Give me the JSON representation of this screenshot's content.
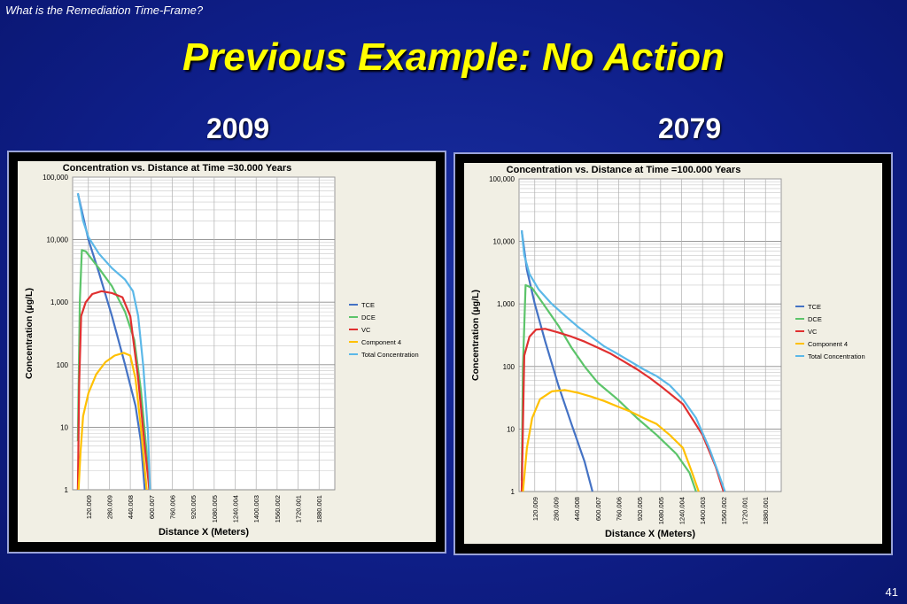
{
  "slide": {
    "header_note": "What is the Remediation Time-Frame?",
    "title": "Previous Example: No Action",
    "year_left": "2009",
    "year_right": "2079",
    "page_number": "41"
  },
  "chart_data": [
    {
      "type": "line",
      "title": "Concentration  vs. Distance at Time =30.000 Years",
      "xlabel": "Distance X (Meters)",
      "ylabel": "Concentration (µg/L)",
      "yscale": "log",
      "ylim": [
        1,
        100000
      ],
      "xlim": [
        0,
        2000
      ],
      "y_tick_labels": [
        "1",
        "10",
        "100",
        "1,000",
        "10,000",
        "100,000"
      ],
      "x_tick_labels": [
        "120.009",
        "280.009",
        "440.008",
        "600.007",
        "760.006",
        "920.005",
        "1080.005",
        "1240.004",
        "1400.003",
        "1560.002",
        "1720.001",
        "1880.001"
      ],
      "legend_position": "right",
      "series": [
        {
          "name": "TCE",
          "color": "#4472c4",
          "x": [
            40,
            120,
            200,
            300,
            400,
            480,
            520,
            550
          ],
          "y": [
            55000,
            10000,
            3000,
            600,
            100,
            22,
            6,
            1
          ]
        },
        {
          "name": "DCE",
          "color": "#5cc46a",
          "x": [
            40,
            55,
            70,
            100,
            200,
            300,
            400,
            470,
            520,
            560,
            585
          ],
          "y": [
            6,
            1000,
            6800,
            6500,
            3500,
            1800,
            700,
            250,
            40,
            5,
            1
          ]
        },
        {
          "name": "VC",
          "color": "#e03030",
          "x": [
            40,
            50,
            65,
            100,
            150,
            220,
            300,
            380,
            440,
            500,
            550,
            585
          ],
          "y": [
            1,
            50,
            600,
            1000,
            1350,
            1500,
            1400,
            1200,
            600,
            60,
            5,
            1
          ]
        },
        {
          "name": "Component 4",
          "color": "#ffc000",
          "x": [
            45,
            60,
            80,
            120,
            180,
            250,
            320,
            390,
            440,
            480,
            520,
            565
          ],
          "y": [
            1,
            4,
            15,
            35,
            70,
            110,
            140,
            155,
            140,
            60,
            10,
            1
          ]
        },
        {
          "name": "Total Concentration",
          "color": "#5bb8e8",
          "x": [
            40,
            80,
            120,
            200,
            300,
            400,
            460,
            500,
            540,
            575,
            590
          ],
          "y": [
            55000,
            20000,
            11000,
            6000,
            3500,
            2300,
            1500,
            600,
            90,
            8,
            1
          ]
        }
      ]
    },
    {
      "type": "line",
      "title": "Concentration  vs. Distance at Time =100.000 Years",
      "xlabel": "Distance X (Meters)",
      "ylabel": "Concentration (µg/L)",
      "yscale": "log",
      "ylim": [
        1,
        100000
      ],
      "xlim": [
        0,
        2000
      ],
      "y_tick_labels": [
        "1",
        "10",
        "100",
        "1,000",
        "10,000",
        "100,000"
      ],
      "x_tick_labels": [
        "120.009",
        "280.009",
        "440.008",
        "600.007",
        "760.006",
        "920.005",
        "1080.005",
        "1240.004",
        "1400.003",
        "1560.002",
        "1720.001",
        "1880.001"
      ],
      "legend_position": "right",
      "series": [
        {
          "name": "TCE",
          "color": "#4472c4",
          "x": [
            20,
            60,
            120,
            200,
            300,
            400,
            500,
            560
          ],
          "y": [
            15000,
            3500,
            1000,
            250,
            50,
            12,
            3,
            1
          ]
        },
        {
          "name": "DCE",
          "color": "#5cc46a",
          "x": [
            20,
            30,
            50,
            100,
            200,
            300,
            400,
            500,
            600,
            750,
            900,
            1050,
            1200,
            1300,
            1350
          ],
          "y": [
            1.5,
            100,
            2000,
            1800,
            900,
            450,
            200,
            100,
            55,
            30,
            15,
            8,
            4,
            2,
            1
          ]
        },
        {
          "name": "VC",
          "color": "#e03030",
          "x": [
            20,
            40,
            80,
            130,
            200,
            300,
            400,
            500,
            600,
            700,
            800,
            900,
            1000,
            1100,
            1250,
            1400,
            1500,
            1560
          ],
          "y": [
            1,
            150,
            300,
            390,
            400,
            350,
            300,
            250,
            200,
            160,
            120,
            90,
            65,
            45,
            25,
            8,
            2.5,
            1
          ]
        },
        {
          "name": "Component 4",
          "color": "#ffc000",
          "x": [
            30,
            60,
            100,
            160,
            250,
            350,
            450,
            550,
            650,
            750,
            850,
            950,
            1050,
            1150,
            1250,
            1320,
            1370
          ],
          "y": [
            1,
            5,
            15,
            30,
            40,
            42,
            38,
            33,
            28,
            23,
            19,
            15,
            12,
            8,
            5,
            2,
            1
          ]
        },
        {
          "name": "Total Concentration",
          "color": "#5bb8e8",
          "x": [
            20,
            40,
            80,
            150,
            250,
            350,
            450,
            550,
            650,
            750,
            850,
            950,
            1050,
            1150,
            1250,
            1350,
            1450,
            1520,
            1570
          ],
          "y": [
            15000,
            6000,
            3000,
            1700,
            1000,
            650,
            430,
            300,
            210,
            160,
            120,
            90,
            70,
            50,
            30,
            15,
            5,
            2,
            1
          ]
        }
      ]
    }
  ]
}
